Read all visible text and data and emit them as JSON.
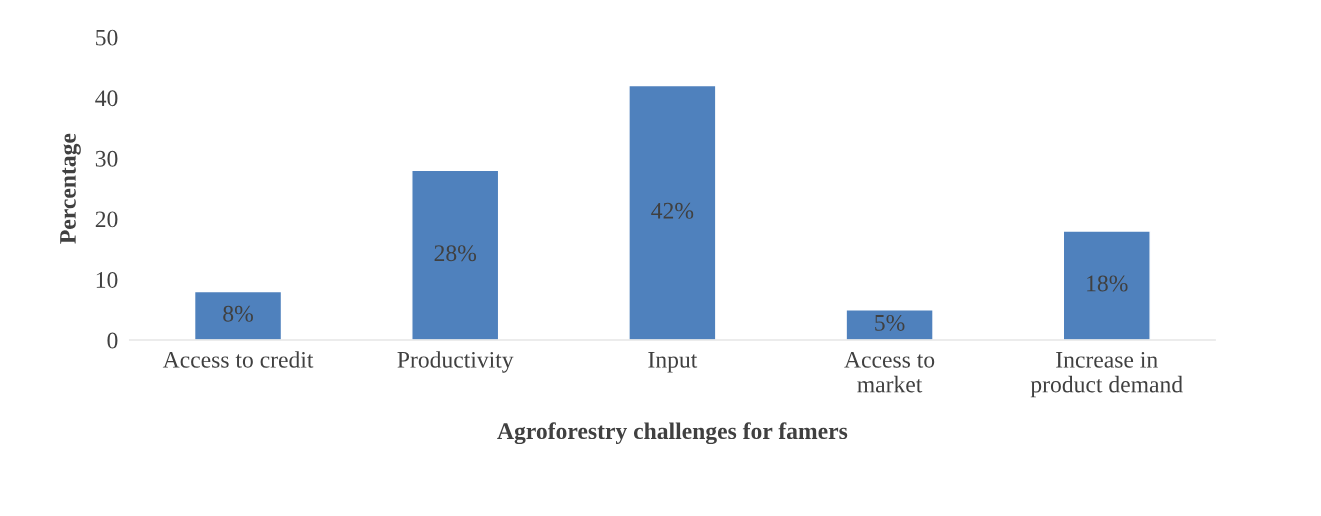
{
  "chart_data": {
    "type": "bar",
    "xlabel": "Agroforestry challenges for famers",
    "ylabel": "Percentage",
    "categories": [
      "Access to credit",
      "Productivity",
      "Input",
      "Access to\nmarket",
      "Increase in\nproduct demand"
    ],
    "values": [
      8,
      28,
      42,
      5,
      18
    ],
    "value_labels": [
      "8%",
      "28%",
      "42%",
      "5%",
      "18%"
    ],
    "color": "#4f81bd",
    "ylim": [
      0,
      50
    ],
    "yticks": [
      0,
      10,
      20,
      30,
      40,
      50
    ]
  }
}
